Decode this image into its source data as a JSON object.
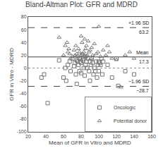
{
  "chart_data": {
    "type": "scatter",
    "title": "Bland-Altman Plot: GFR and MDRD",
    "xlabel": "Mean of GFR in Vitro and MDRD",
    "ylabel": "GFR in Vitro - MDRD",
    "xlim": [
      20,
      160
    ],
    "ylim": [
      -100,
      80
    ],
    "xticks": [
      20,
      40,
      60,
      80,
      100,
      120,
      140,
      160
    ],
    "yticks": [
      -100,
      -80,
      -60,
      -40,
      -20,
      0,
      20,
      40,
      60,
      80
    ],
    "grid": false,
    "legend": "lower right",
    "series": [
      {
        "name": "Oncologic",
        "color": "#777777",
        "marker": "square",
        "x": [
          35,
          38,
          42,
          55,
          60,
          62,
          63,
          65,
          67,
          68,
          70,
          72,
          73,
          74,
          75,
          75,
          76,
          77,
          78,
          78,
          79,
          80,
          80,
          81,
          82,
          83,
          83,
          84,
          85,
          85,
          86,
          87,
          88,
          89,
          90,
          90,
          91,
          92,
          93,
          94,
          95,
          96,
          97,
          98,
          99,
          100,
          100,
          101,
          102,
          103,
          104,
          105,
          110,
          115,
          120,
          122,
          130,
          140
        ],
        "values": [
          -15,
          -10,
          -55,
          12,
          -15,
          0,
          -20,
          5,
          10,
          -5,
          15,
          3,
          8,
          -10,
          -25,
          12,
          10,
          5,
          -5,
          15,
          10,
          8,
          -8,
          20,
          12,
          0,
          15,
          -12,
          5,
          18,
          10,
          0,
          15,
          -5,
          10,
          -20,
          5,
          15,
          8,
          -10,
          0,
          -5,
          10,
          -15,
          5,
          10,
          -5,
          8,
          5,
          15,
          -10,
          10,
          5,
          -15,
          15,
          -28,
          -5,
          -10
        ]
      },
      {
        "name": "Potential donor",
        "color": "#777777",
        "marker": "triangle",
        "x": [
          55,
          60,
          62,
          64,
          65,
          66,
          67,
          68,
          70,
          72,
          73,
          74,
          75,
          76,
          77,
          78,
          79,
          80,
          80,
          81,
          82,
          83,
          84,
          85,
          85,
          86,
          87,
          88,
          89,
          90,
          91,
          92,
          93,
          95,
          97,
          99,
          100,
          102,
          105,
          108,
          110,
          112,
          115,
          120,
          125,
          130,
          135,
          140
        ],
        "values": [
          48,
          20,
          35,
          40,
          25,
          30,
          22,
          15,
          18,
          28,
          20,
          35,
          22,
          18,
          30,
          25,
          15,
          50,
          20,
          40,
          22,
          25,
          45,
          30,
          18,
          35,
          20,
          42,
          25,
          28,
          15,
          32,
          20,
          38,
          22,
          25,
          65,
          18,
          28,
          20,
          35,
          25,
          15,
          13,
          -30,
          20,
          25,
          15
        ]
      }
    ],
    "reference_lines": [
      {
        "value": 17.3,
        "label": "Mean",
        "value_label": "17.3",
        "color": "#444444",
        "line_style": "solid"
      },
      {
        "value": 63.2,
        "label": "+1.96 SD",
        "value_label": "63.2",
        "color": "#444444",
        "line_style": "dashed"
      },
      {
        "value": -28.7,
        "label": "−1.96 SD",
        "value_label": "−28.7",
        "color": "#444444",
        "line_style": "dashed"
      },
      {
        "value": 0,
        "color": "#888888",
        "line_style": "dotted"
      }
    ]
  }
}
